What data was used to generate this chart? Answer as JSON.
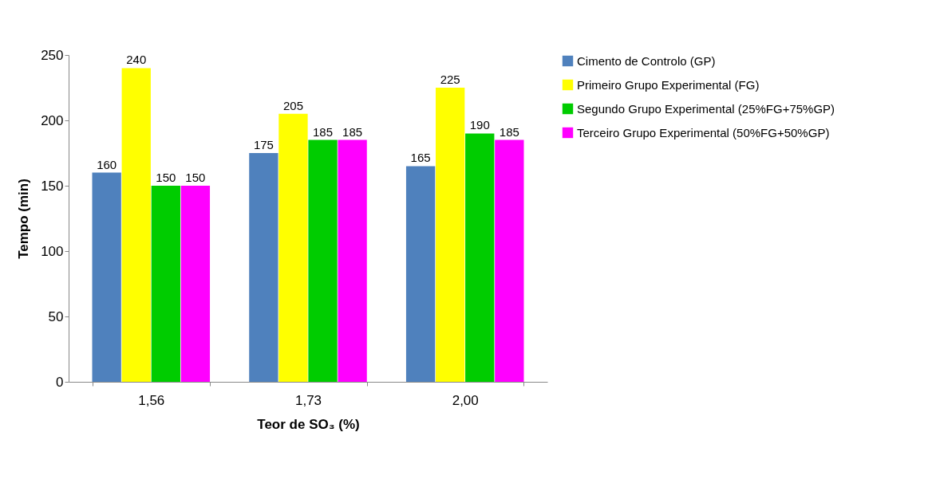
{
  "chart_data": {
    "type": "bar",
    "xlabel": "Teor de SO₃ (%)",
    "ylabel": "Tempo (min)",
    "categories": [
      "1,56",
      "1,73",
      "2,00"
    ],
    "series": [
      {
        "name": "Cimento de Controlo (GP)",
        "color": "#4f81bd",
        "values": [
          160,
          175,
          165
        ]
      },
      {
        "name": "Primeiro Grupo Experimental (FG)",
        "color": "#ffff00",
        "values": [
          240,
          205,
          225
        ]
      },
      {
        "name": "Segundo Grupo Experimental (25%FG+75%GP)",
        "color": "#00cc00",
        "values": [
          150,
          185,
          190
        ]
      },
      {
        "name": "Terceiro Grupo Experimental (50%FG+50%GP)",
        "color": "#ff00ff",
        "values": [
          150,
          185,
          185
        ]
      }
    ],
    "ylim": [
      0,
      250
    ],
    "yticks": [
      0,
      50,
      100,
      150,
      200,
      250
    ],
    "grid": false,
    "legend": "right",
    "data_labels": true
  }
}
